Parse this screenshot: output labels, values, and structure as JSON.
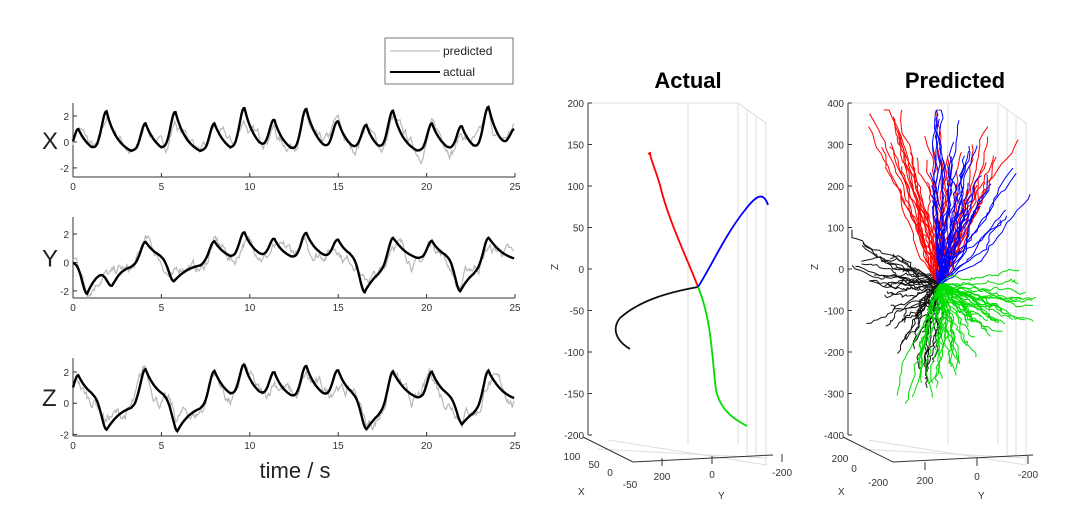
{
  "chart_data": [
    {
      "type": "line",
      "panel": "X",
      "ylabel": "X",
      "ylim": [
        -2.7,
        3
      ],
      "yticks": [
        "-2",
        "0",
        "2"
      ],
      "xlim": [
        0,
        25
      ],
      "xticks": [
        "0",
        "5",
        "10",
        "15",
        "20",
        "25"
      ],
      "actual_baseline": -1.2,
      "actual_peaks": [
        [
          0.3,
          1.0
        ],
        [
          1.9,
          2.1
        ],
        [
          4.1,
          1.4
        ],
        [
          5.8,
          2.1
        ],
        [
          8.0,
          1.4
        ],
        [
          9.7,
          2.4
        ],
        [
          11.4,
          1.4
        ],
        [
          13.2,
          2.4
        ],
        [
          15.0,
          1.4
        ],
        [
          16.6,
          1.0
        ],
        [
          18.1,
          2.1
        ],
        [
          20.3,
          1.4
        ],
        [
          22.0,
          1.0
        ],
        [
          23.5,
          2.4
        ],
        [
          25.0,
          0.5
        ]
      ]
    },
    {
      "type": "line",
      "panel": "Y",
      "ylabel": "Y",
      "ylim": [
        -2.5,
        3.2
      ],
      "yticks": [
        "-2",
        "0",
        "2"
      ],
      "xlim": [
        0,
        25
      ],
      "xticks": [
        "0",
        "5",
        "10",
        "15",
        "20",
        "25"
      ],
      "actual_baseline": 0,
      "actual_peaks": [
        [
          0.8,
          -2.2
        ],
        [
          2.2,
          -1.3
        ],
        [
          4.1,
          1.5
        ],
        [
          5.7,
          -1.5
        ],
        [
          8.0,
          1.5
        ],
        [
          9.7,
          2.0
        ],
        [
          11.4,
          1.5
        ],
        [
          13.2,
          2.0
        ],
        [
          15.0,
          1.5
        ],
        [
          16.5,
          -2.3
        ],
        [
          18.1,
          2.0
        ],
        [
          20.3,
          1.5
        ],
        [
          21.9,
          -2.2
        ],
        [
          23.5,
          2.0
        ]
      ]
    },
    {
      "type": "line",
      "panel": "Z",
      "ylabel": "Z",
      "ylim": [
        -2.1,
        2.9
      ],
      "yticks": [
        "-2",
        "0",
        "2"
      ],
      "xlim": [
        0,
        25
      ],
      "xticks": [
        "0",
        "5",
        "10",
        "15",
        "20",
        "25"
      ],
      "xlabel": "time / s",
      "actual_baseline": 0,
      "actual_peaks": [
        [
          0.3,
          1.8
        ],
        [
          1.9,
          -1.9
        ],
        [
          4.1,
          2.2
        ],
        [
          5.9,
          -1.9
        ],
        [
          8.0,
          2.1
        ],
        [
          9.7,
          2.3
        ],
        [
          11.4,
          1.8
        ],
        [
          13.2,
          2.3
        ],
        [
          15.0,
          2.0
        ],
        [
          16.6,
          -1.9
        ],
        [
          18.1,
          2.3
        ],
        [
          20.3,
          2.0
        ],
        [
          22.0,
          -1.5
        ],
        [
          23.5,
          2.3
        ]
      ]
    },
    {
      "type": "line3d",
      "title": "Actual",
      "zlim": [
        -200,
        200
      ],
      "zticks": [
        "200",
        "150",
        "100",
        "50",
        "0",
        "-50",
        "-100",
        "-150",
        "-200"
      ],
      "xticks": [
        "100",
        "50",
        "0",
        "-50"
      ],
      "yticks": [
        "200",
        "0",
        "-200"
      ],
      "xlabel": "X",
      "ylabel": "Y",
      "zlabel": "Z",
      "series": [
        {
          "name": "red",
          "color": "#ff0000"
        },
        {
          "name": "blue",
          "color": "#0000ff"
        },
        {
          "name": "green",
          "color": "#00dd00"
        },
        {
          "name": "black",
          "color": "#111111"
        }
      ]
    },
    {
      "type": "line3d",
      "title": "Predicted",
      "zlim": [
        -400,
        400
      ],
      "zticks": [
        "400",
        "300",
        "200",
        "100",
        "0",
        "-100",
        "-200",
        "-300",
        "-400"
      ],
      "xticks": [
        "200",
        "0",
        "-200"
      ],
      "yticks": [
        "200",
        "0",
        "-200"
      ],
      "xlabel": "X",
      "ylabel": "Y",
      "zlabel": "Z",
      "series": [
        {
          "name": "red",
          "color": "#ff0000"
        },
        {
          "name": "blue",
          "color": "#0000ff"
        },
        {
          "name": "green",
          "color": "#00dd00"
        },
        {
          "name": "black",
          "color": "#111111"
        }
      ]
    }
  ],
  "legend": {
    "predicted": "predicted",
    "actual": "actual",
    "predicted_color": "#b8b8b8",
    "actual_color": "#000000"
  }
}
